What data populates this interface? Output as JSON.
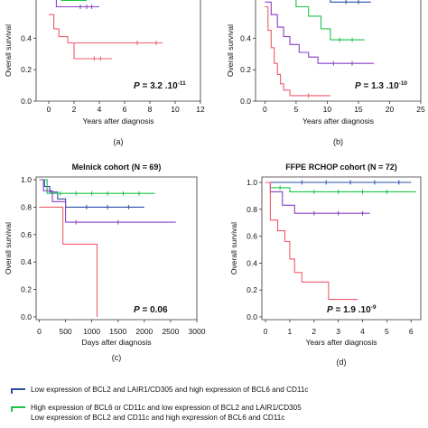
{
  "colors": {
    "blue": "#2b4fa8",
    "green": "#19c449",
    "purple": "#8a3fc2",
    "red": "#f05a6a",
    "axis": "#222222"
  },
  "chart_data": [
    {
      "id": "a",
      "type": "line",
      "title": "",
      "xlabel": "Years after diagnosis",
      "ylabel": "Overall survival",
      "xlim": [
        -1,
        12
      ],
      "ylim": [
        0,
        0.62
      ],
      "x_ticks": [
        0,
        2,
        4,
        6,
        8,
        10,
        12
      ],
      "y_ticks": [
        0.0,
        0.2,
        0.4
      ],
      "pvalue": "P = 3.2 .10",
      "pvalue_exp": "-11",
      "caption": "(a)",
      "series": [
        {
          "color": "green",
          "points": [
            [
              0,
              0.68
            ],
            [
              1.0,
              0.68
            ],
            [
              1.0,
              0.64
            ],
            [
              3.0,
              0.64
            ]
          ]
        },
        {
          "color": "purple",
          "points": [
            [
              0,
              0.66
            ],
            [
              0.6,
              0.66
            ],
            [
              0.6,
              0.6
            ],
            [
              4.0,
              0.6
            ]
          ],
          "censor": [
            [
              2.5,
              0.6
            ],
            [
              3.0,
              0.6
            ],
            [
              3.4,
              0.6
            ]
          ]
        },
        {
          "color": "red",
          "points": [
            [
              0,
              0.55
            ],
            [
              0.4,
              0.55
            ],
            [
              0.4,
              0.46
            ],
            [
              0.8,
              0.46
            ],
            [
              0.8,
              0.41
            ],
            [
              1.5,
              0.41
            ],
            [
              1.5,
              0.37
            ],
            [
              2.0,
              0.37
            ],
            [
              2.0,
              0.27
            ],
            [
              5.0,
              0.27
            ]
          ],
          "censor": [
            [
              3.6,
              0.27
            ],
            [
              4.1,
              0.27
            ]
          ]
        },
        {
          "color": "red",
          "points": [
            [
              2.0,
              0.37
            ],
            [
              9.0,
              0.37
            ]
          ],
          "censor": [
            [
              7.0,
              0.37
            ],
            [
              8.5,
              0.37
            ]
          ]
        }
      ]
    },
    {
      "id": "b",
      "type": "line",
      "title": "",
      "xlabel": "Years after diagnosis",
      "ylabel": "Overall survival",
      "xlim": [
        -1.5,
        25
      ],
      "ylim": [
        0,
        0.62
      ],
      "x_ticks": [
        0,
        5,
        10,
        15,
        20,
        25
      ],
      "y_ticks": [
        0.0,
        0.2,
        0.4
      ],
      "pvalue": "P = 1.3 .10",
      "pvalue_exp": "-10",
      "caption": "(b)",
      "series": [
        {
          "color": "blue",
          "points": [
            [
              0,
              0.68
            ],
            [
              10.5,
              0.68
            ],
            [
              10.5,
              0.63
            ],
            [
              17.0,
              0.63
            ]
          ],
          "censor": [
            [
              13.0,
              0.63
            ],
            [
              15.0,
              0.63
            ]
          ]
        },
        {
          "color": "green",
          "points": [
            [
              0,
              0.68
            ],
            [
              3.0,
              0.68
            ],
            [
              3.0,
              0.66
            ],
            [
              5.0,
              0.66
            ],
            [
              5.0,
              0.6
            ],
            [
              7.0,
              0.6
            ],
            [
              7.0,
              0.54
            ],
            [
              9.0,
              0.54
            ],
            [
              9.0,
              0.46
            ],
            [
              10.5,
              0.46
            ],
            [
              10.5,
              0.39
            ],
            [
              16.0,
              0.39
            ]
          ],
          "censor": [
            [
              12.0,
              0.39
            ],
            [
              14.0,
              0.39
            ]
          ]
        },
        {
          "color": "purple",
          "points": [
            [
              0,
              0.63
            ],
            [
              1.0,
              0.63
            ],
            [
              1.0,
              0.55
            ],
            [
              2.0,
              0.55
            ],
            [
              2.0,
              0.47
            ],
            [
              3.0,
              0.47
            ],
            [
              3.0,
              0.41
            ],
            [
              4.0,
              0.41
            ],
            [
              4.0,
              0.36
            ],
            [
              5.5,
              0.36
            ],
            [
              5.5,
              0.31
            ],
            [
              7.0,
              0.31
            ],
            [
              7.0,
              0.28
            ],
            [
              8.5,
              0.28
            ],
            [
              8.5,
              0.24
            ],
            [
              17.5,
              0.24
            ]
          ],
          "censor": [
            [
              11.0,
              0.24
            ],
            [
              14.0,
              0.24
            ]
          ]
        },
        {
          "color": "red",
          "points": [
            [
              0,
              0.6
            ],
            [
              0.5,
              0.6
            ],
            [
              0.5,
              0.45
            ],
            [
              1.0,
              0.45
            ],
            [
              1.0,
              0.34
            ],
            [
              1.5,
              0.34
            ],
            [
              1.5,
              0.24
            ],
            [
              2.0,
              0.24
            ],
            [
              2.0,
              0.17
            ],
            [
              2.5,
              0.17
            ],
            [
              2.5,
              0.11
            ],
            [
              3.0,
              0.11
            ],
            [
              3.0,
              0.07
            ],
            [
              4.0,
              0.07
            ],
            [
              4.0,
              0.035
            ],
            [
              10.5,
              0.035
            ]
          ],
          "censor": [
            [
              7.0,
              0.035
            ]
          ]
        }
      ]
    },
    {
      "id": "c",
      "type": "line",
      "title": "Melnick cohort (N = 69)",
      "xlabel": "Days after diagnosis",
      "ylabel": "Overall survival",
      "xlim": [
        -60,
        3000
      ],
      "ylim": [
        -0.02,
        1.02
      ],
      "x_ticks": [
        0,
        500,
        1000,
        1500,
        2000,
        2500,
        3000
      ],
      "y_ticks": [
        0.0,
        0.2,
        0.4,
        0.6,
        0.8,
        1.0
      ],
      "pvalue": "P = 0.06",
      "pvalue_exp": "",
      "caption": "(c)",
      "series": [
        {
          "color": "blue",
          "points": [
            [
              0,
              1.0
            ],
            [
              100,
              1.0
            ],
            [
              100,
              0.95
            ],
            [
              200,
              0.95
            ],
            [
              200,
              0.91
            ],
            [
              350,
              0.91
            ],
            [
              350,
              0.86
            ],
            [
              500,
              0.86
            ],
            [
              500,
              0.8
            ],
            [
              2000,
              0.8
            ]
          ],
          "censor": [
            [
              900,
              0.8
            ],
            [
              1300,
              0.8
            ],
            [
              1700,
              0.8
            ]
          ]
        },
        {
          "color": "green",
          "points": [
            [
              0,
              1.0
            ],
            [
              150,
              1.0
            ],
            [
              150,
              0.9
            ],
            [
              2200,
              0.9
            ]
          ],
          "censor": [
            [
              400,
              0.9
            ],
            [
              700,
              0.9
            ],
            [
              1000,
              0.9
            ],
            [
              1300,
              0.9
            ],
            [
              1600,
              0.9
            ],
            [
              1900,
              0.9
            ]
          ]
        },
        {
          "color": "purple",
          "points": [
            [
              0,
              1.0
            ],
            [
              80,
              1.0
            ],
            [
              80,
              0.92
            ],
            [
              250,
              0.92
            ],
            [
              250,
              0.84
            ],
            [
              500,
              0.84
            ],
            [
              500,
              0.69
            ],
            [
              2600,
              0.69
            ]
          ],
          "censor": [
            [
              700,
              0.69
            ],
            [
              1500,
              0.69
            ]
          ]
        },
        {
          "color": "red",
          "points": [
            [
              0,
              0.8
            ],
            [
              450,
              0.8
            ],
            [
              450,
              0.53
            ],
            [
              1100,
              0.53
            ],
            [
              1100,
              0.0
            ]
          ]
        }
      ]
    },
    {
      "id": "d",
      "type": "line",
      "title": "FFPE RCHOP cohort (N = 72)",
      "xlabel": "Years after diagnosis",
      "ylabel": "Overall survival",
      "xlim": [
        -0.15,
        6.4
      ],
      "ylim": [
        -0.02,
        1.04
      ],
      "x_ticks": [
        0,
        1,
        2,
        3,
        4,
        5,
        6
      ],
      "y_ticks": [
        0.0,
        0.2,
        0.4,
        0.6,
        0.8,
        1.0
      ],
      "pvalue": "P = 1.9 .10",
      "pvalue_exp": "-9",
      "caption": "(d)",
      "series": [
        {
          "color": "blue",
          "points": [
            [
              0,
              1.0
            ],
            [
              6.0,
              1.0
            ]
          ],
          "censor": [
            [
              1.5,
              1.0
            ],
            [
              2.5,
              1.0
            ],
            [
              3.5,
              1.0
            ],
            [
              4.5,
              1.0
            ],
            [
              5.5,
              1.0
            ]
          ]
        },
        {
          "color": "green",
          "points": [
            [
              0,
              1.0
            ],
            [
              0.2,
              1.0
            ],
            [
              0.2,
              0.96
            ],
            [
              1.0,
              0.96
            ],
            [
              1.0,
              0.93
            ],
            [
              6.2,
              0.93
            ]
          ],
          "censor": [
            [
              0.6,
              0.96
            ],
            [
              2.0,
              0.93
            ],
            [
              3.0,
              0.93
            ],
            [
              4.0,
              0.93
            ],
            [
              5.0,
              0.93
            ]
          ]
        },
        {
          "color": "purple",
          "points": [
            [
              0,
              1.0
            ],
            [
              0.2,
              1.0
            ],
            [
              0.2,
              0.93
            ],
            [
              0.7,
              0.93
            ],
            [
              0.7,
              0.83
            ],
            [
              1.2,
              0.83
            ],
            [
              1.2,
              0.77
            ],
            [
              4.3,
              0.77
            ]
          ],
          "censor": [
            [
              2.0,
              0.77
            ],
            [
              3.0,
              0.77
            ],
            [
              4.0,
              0.77
            ]
          ]
        },
        {
          "color": "red",
          "points": [
            [
              0,
              1.0
            ],
            [
              0.2,
              1.0
            ],
            [
              0.2,
              0.72
            ],
            [
              0.5,
              0.72
            ],
            [
              0.5,
              0.64
            ],
            [
              0.8,
              0.64
            ],
            [
              0.8,
              0.56
            ],
            [
              1.0,
              0.56
            ],
            [
              1.0,
              0.43
            ],
            [
              1.2,
              0.43
            ],
            [
              1.2,
              0.33
            ],
            [
              1.5,
              0.33
            ],
            [
              1.5,
              0.26
            ],
            [
              2.6,
              0.26
            ],
            [
              2.6,
              0.13
            ],
            [
              3.8,
              0.13
            ]
          ]
        }
      ]
    }
  ],
  "legend": [
    {
      "color": "blue",
      "label": "Low expression of BCL2 and LAIR1/CD305 and high expression of BCL6 and CD11c"
    },
    {
      "color": "green",
      "label": "High expression of BCL6 or CD11c  and low expression of BCL2 and LAIR1/CD305"
    },
    {
      "color": "",
      "label": "Low expression of BCL2 and CD11c and high expression of BCL6 and CD11c"
    }
  ]
}
